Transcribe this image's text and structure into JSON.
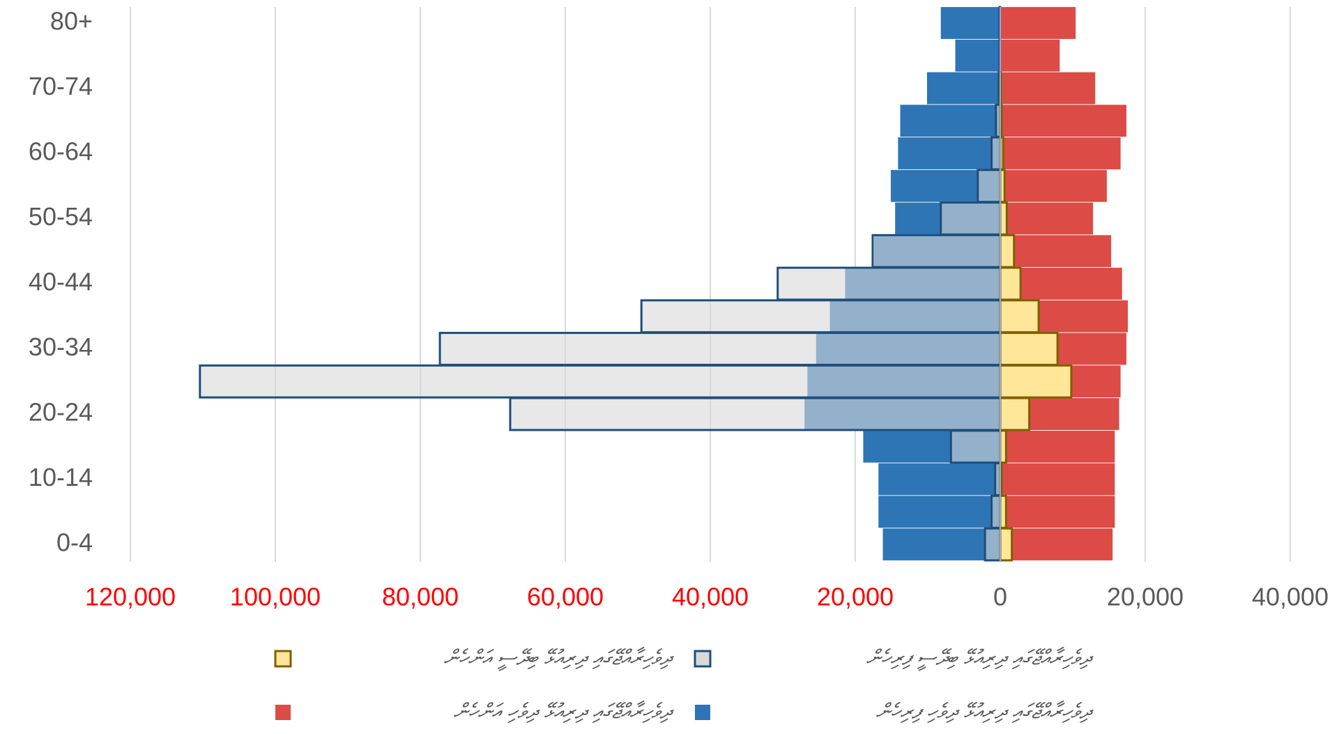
{
  "chart_data": {
    "type": "population-pyramid",
    "categories": [
      "0-4",
      null,
      "10-14",
      null,
      "20-24",
      null,
      "30-34",
      null,
      "40-44",
      null,
      "50-54",
      null,
      "60-64",
      null,
      "70-74",
      null,
      "80+"
    ],
    "series": [
      {
        "name": "ދިވެހިރާއްޖޭގައި ދިރިއުޅޭ ދިވެހި ފިރިހެން",
        "color": "#2e75b6",
        "values": [
          -16200,
          -16800,
          -16800,
          -18900,
          -27000,
          -26600,
          -25400,
          -23500,
          -21400,
          -17400,
          -14500,
          -15100,
          -14100,
          -13800,
          -10100,
          -6200,
          -8200
        ]
      },
      {
        "name": "ދިވެހިރާއްޖޭގައި ދިރިއުޅޭ ބިދޭސީ ފިރިހެން",
        "color": "#d9d9d9",
        "values": [
          -2100,
          -1200,
          -700,
          -6800,
          -67600,
          -110400,
          -77300,
          -49500,
          -30700,
          -17600,
          -8200,
          -3100,
          -1200,
          -600,
          -200,
          -100,
          -100
        ]
      },
      {
        "name": "ދިވެހިރާއްޖޭގައި ދިރިއުޅޭ ދިވެހި އަންހެން",
        "color": "#dc4b45",
        "values": [
          15500,
          15800,
          15800,
          15800,
          16400,
          16600,
          17400,
          17600,
          16800,
          15300,
          12800,
          14700,
          16600,
          17400,
          13100,
          8200,
          10400
        ]
      },
      {
        "name": "ދިވެހިރާއްޖޭގައި ދިރިއުޅޭ ބިދޭސީ އަންހެން",
        "color": "#ffe699",
        "values": [
          1600,
          800,
          200,
          800,
          4000,
          9800,
          7900,
          5300,
          2800,
          1900,
          900,
          600,
          400,
          200,
          100,
          0,
          0
        ]
      }
    ],
    "xlim": [
      -120000,
      40000
    ],
    "xticks": [
      {
        "value": -120000,
        "label": "120,000"
      },
      {
        "value": -100000,
        "label": "100,000"
      },
      {
        "value": -80000,
        "label": "80,000"
      },
      {
        "value": -60000,
        "label": "60,000"
      },
      {
        "value": -40000,
        "label": "40,000"
      },
      {
        "value": -20000,
        "label": "20,000"
      },
      0,
      {
        "value": 20000,
        "label": "20,000"
      },
      {
        "value": 40000,
        "label": "40,000"
      }
    ],
    "grid": true,
    "negative_tick_color": "#ff0000"
  }
}
